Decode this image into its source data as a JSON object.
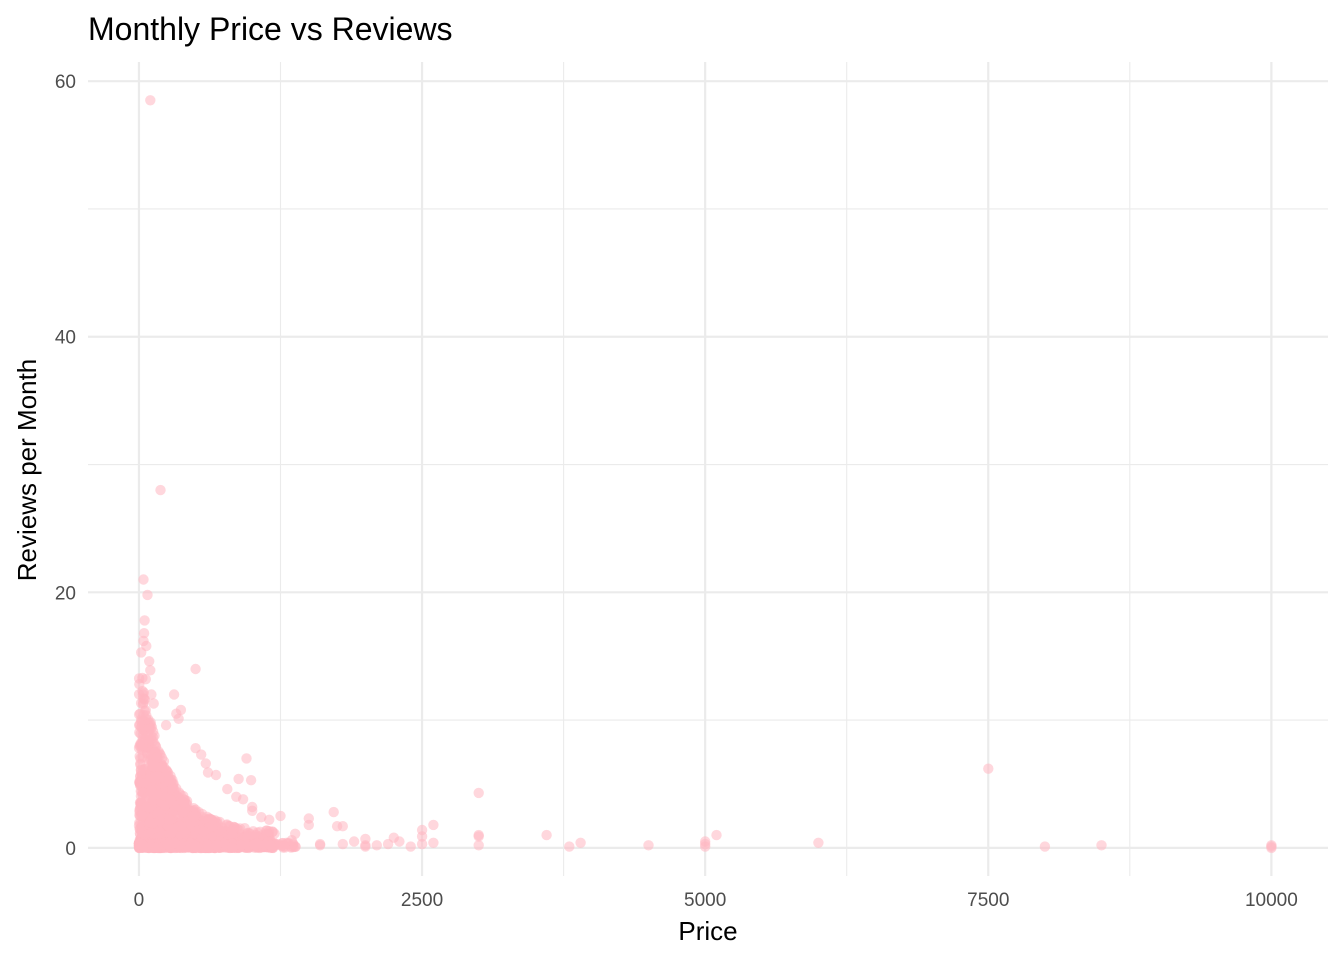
{
  "chart_data": {
    "type": "scatter",
    "title": "Monthly Price vs Reviews",
    "xlabel": "Price",
    "ylabel": "Reviews per Month",
    "xlim": [
      -450,
      10500
    ],
    "ylim": [
      -2.2,
      61.5
    ],
    "x_ticks": [
      0,
      2500,
      5000,
      7500,
      10000
    ],
    "x_tick_labels": [
      "0",
      "2500",
      "5000",
      "7500",
      "10000"
    ],
    "y_ticks": [
      0,
      20,
      40,
      60
    ],
    "y_tick_labels": [
      "0",
      "20",
      "40",
      "60"
    ],
    "grid": true,
    "legend": "none",
    "point_color": "#FFB6C1",
    "point_alpha": 0.55,
    "series": [
      {
        "points": [
          [
            100,
            58.5
          ],
          [
            190,
            28.0
          ],
          [
            40,
            21.0
          ],
          [
            75,
            19.8
          ],
          [
            50,
            17.8
          ],
          [
            45,
            16.8
          ],
          [
            40,
            16.2
          ],
          [
            65,
            15.8
          ],
          [
            20,
            15.3
          ],
          [
            500,
            14.0
          ],
          [
            90,
            14.6
          ],
          [
            100,
            13.9
          ],
          [
            30,
            13.3
          ],
          [
            60,
            13.2
          ],
          [
            310,
            12.0
          ],
          [
            110,
            12.0
          ],
          [
            130,
            11.3
          ],
          [
            50,
            11.6
          ],
          [
            370,
            10.8
          ],
          [
            330,
            10.5
          ],
          [
            350,
            10.1
          ],
          [
            40,
            10.4
          ],
          [
            240,
            9.6
          ],
          [
            950,
            7.0
          ],
          [
            550,
            7.3
          ],
          [
            500,
            7.8
          ],
          [
            590,
            6.6
          ],
          [
            680,
            5.7
          ],
          [
            990,
            5.3
          ],
          [
            880,
            5.4
          ],
          [
            610,
            5.9
          ],
          [
            7500,
            6.2
          ],
          [
            3000,
            4.3
          ],
          [
            780,
            4.6
          ],
          [
            860,
            4.0
          ],
          [
            920,
            3.8
          ],
          [
            1000,
            3.2
          ],
          [
            1000,
            2.9
          ],
          [
            1080,
            2.4
          ],
          [
            1150,
            2.2
          ],
          [
            1250,
            2.5
          ],
          [
            1720,
            2.8
          ],
          [
            1500,
            2.3
          ],
          [
            1500,
            1.8
          ],
          [
            1380,
            1.1
          ],
          [
            1750,
            1.7
          ],
          [
            1800,
            1.7
          ],
          [
            1350,
            0.6
          ],
          [
            1600,
            0.3
          ],
          [
            1600,
            0.2
          ],
          [
            1800,
            0.3
          ],
          [
            1900,
            0.5
          ],
          [
            2000,
            0.7
          ],
          [
            2000,
            0.2
          ],
          [
            2000,
            0.1
          ],
          [
            2100,
            0.2
          ],
          [
            2250,
            0.8
          ],
          [
            2200,
            0.3
          ],
          [
            2300,
            0.5
          ],
          [
            2400,
            0.1
          ],
          [
            2500,
            1.4
          ],
          [
            2500,
            0.9
          ],
          [
            2500,
            0.3
          ],
          [
            2600,
            1.8
          ],
          [
            2600,
            0.4
          ],
          [
            3000,
            1.0
          ],
          [
            3000,
            0.9
          ],
          [
            3000,
            0.2
          ],
          [
            3600,
            1.0
          ],
          [
            3800,
            0.1
          ],
          [
            3900,
            0.4
          ],
          [
            4500,
            0.2
          ],
          [
            5000,
            0.5
          ],
          [
            5000,
            0.3
          ],
          [
            5000,
            0.1
          ],
          [
            5100,
            1.0
          ],
          [
            6000,
            0.4
          ],
          [
            8000,
            0.1
          ],
          [
            8500,
            0.2
          ],
          [
            10000,
            0.2
          ],
          [
            10000,
            0.1
          ],
          [
            10000,
            0.0
          ]
        ]
      }
    ]
  }
}
